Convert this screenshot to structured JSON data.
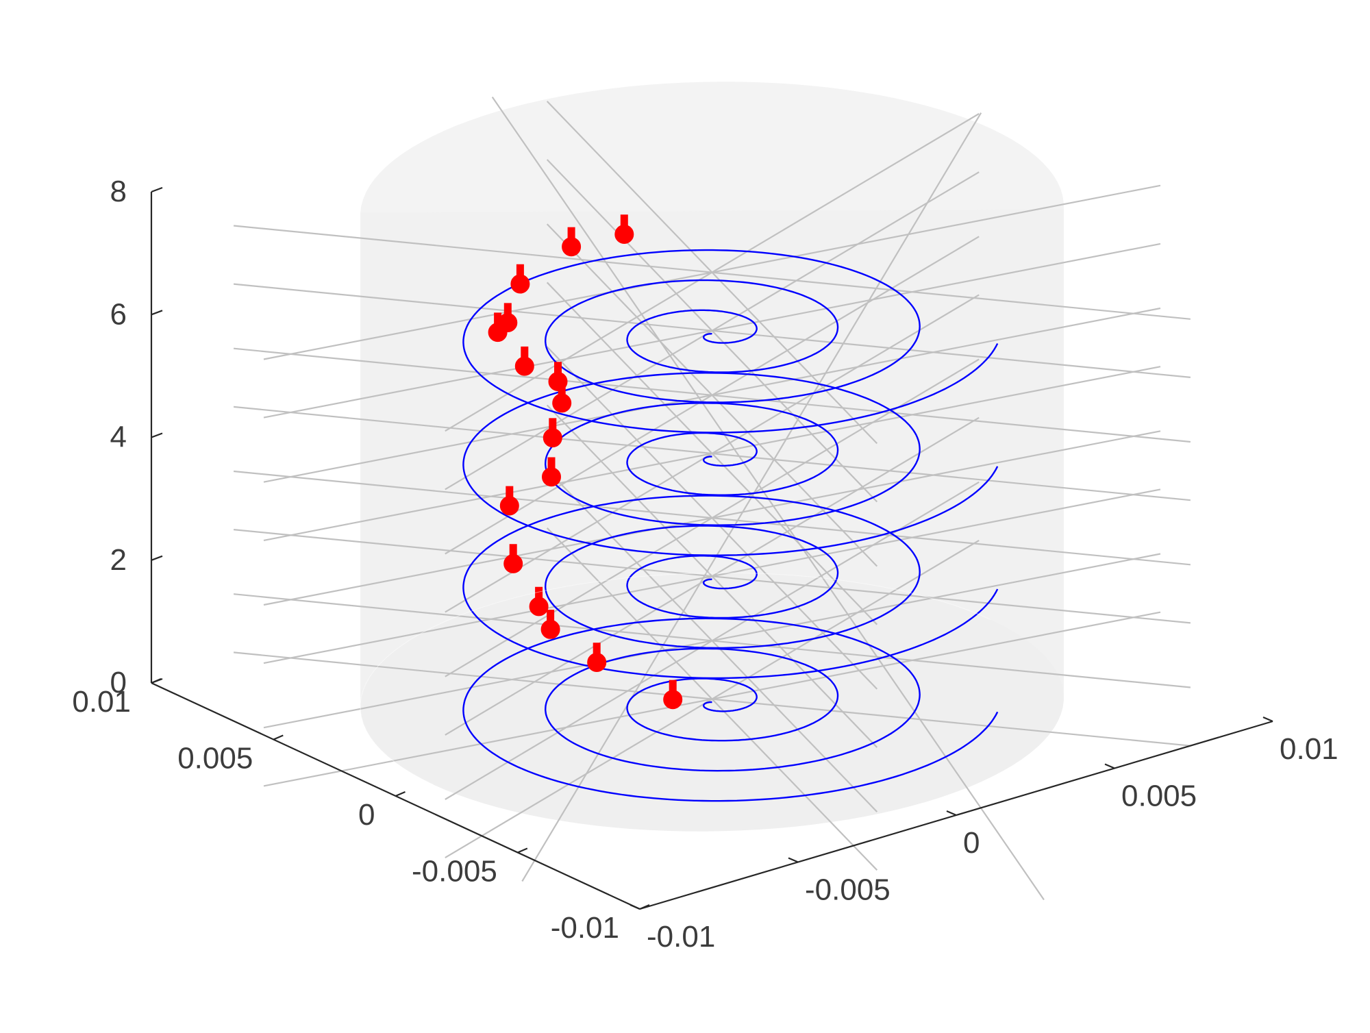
{
  "chart_data": {
    "type": "3d-plot",
    "title": "",
    "xlabel": "",
    "ylabel": "",
    "zlabel": "",
    "grid": true,
    "legend": "none",
    "view_angles": {
      "azimuth_deg": 45,
      "elevation_deg": 15
    },
    "x_axis": {
      "lim": [
        -0.01,
        0.01
      ],
      "ticks": [
        -0.01,
        -0.005,
        0,
        0.005,
        0.01
      ],
      "tick_labels": [
        "-0.01",
        "-0.005",
        "0",
        "0.005",
        "0.01"
      ]
    },
    "y_axis": {
      "lim": [
        -0.01,
        0.01
      ],
      "ticks": [
        -0.01,
        -0.005,
        0,
        0.005,
        0.01
      ],
      "tick_labels": [
        "-0.01",
        "-0.005",
        "0",
        "0.005",
        "0.01"
      ]
    },
    "z_axis": {
      "lim": [
        0,
        8
      ],
      "ticks": [
        0,
        2,
        4,
        6,
        8
      ],
      "tick_labels": [
        "0",
        "2",
        "4",
        "6",
        "8"
      ]
    },
    "cylinder": {
      "radius": 0.0088,
      "z_range": [
        0,
        8
      ],
      "color": "#efefef",
      "grid_color": "#c0c0c0"
    },
    "spirals": {
      "color": "#0000ff",
      "z_levels": [
        0,
        2,
        4,
        6
      ],
      "turns": 3.5,
      "max_radius": 0.0072
    },
    "markers": {
      "color": "#ff0000",
      "style": "stem",
      "stem_height": 0.32,
      "points": [
        {
          "x": -0.0007,
          "y": 0.0007,
          "z": 0.02
        },
        {
          "x": -0.0021,
          "y": 0.002,
          "z": 0.6
        },
        {
          "x": -0.0031,
          "y": 0.0026,
          "z": 1.18
        },
        {
          "x": -0.0037,
          "y": 0.0023,
          "z": 1.7
        },
        {
          "x": -0.0042,
          "y": 0.0027,
          "z": 2.4
        },
        {
          "x": -0.0037,
          "y": 0.0035,
          "z": 3.12
        },
        {
          "x": -0.0033,
          "y": 0.0023,
          "z": 3.75
        },
        {
          "x": -0.0028,
          "y": 0.0029,
          "z": 4.2
        },
        {
          "x": -0.0022,
          "y": 0.0033,
          "z": 4.6
        },
        {
          "x": -0.0024,
          "y": 0.0032,
          "z": 5.0
        },
        {
          "x": -0.0033,
          "y": 0.0034,
          "z": 5.35
        },
        {
          "x": -0.0033,
          "y": 0.0045,
          "z": 5.7
        },
        {
          "x": -0.0036,
          "y": 0.0037,
          "z": 6.05
        },
        {
          "x": -0.0029,
          "y": 0.0041,
          "z": 6.5
        },
        {
          "x": -0.0019,
          "y": 0.0033,
          "z": 7.1
        },
        {
          "x": -0.001,
          "y": 0.0023,
          "z": 7.35
        }
      ]
    }
  }
}
